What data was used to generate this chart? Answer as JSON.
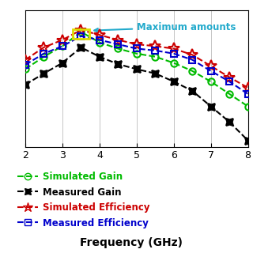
{
  "x_freq": [
    2.0,
    2.5,
    3.0,
    3.5,
    4.0,
    4.5,
    5.0,
    5.5,
    6.0,
    6.5,
    7.0,
    7.5,
    8.0
  ],
  "sim_gain": [
    1.5,
    3.5,
    5.2,
    7.5,
    5.8,
    4.8,
    4.0,
    3.5,
    2.5,
    1.2,
    -0.5,
    -2.5,
    -4.5
  ],
  "meas_gain": [
    -1.0,
    0.8,
    2.5,
    5.0,
    3.5,
    2.3,
    1.5,
    0.8,
    -0.5,
    -2.0,
    -4.5,
    -7.0,
    -10.0
  ],
  "sim_eff": [
    3.0,
    5.0,
    6.2,
    7.8,
    7.0,
    6.2,
    5.5,
    5.2,
    4.8,
    3.8,
    2.0,
    0.2,
    -1.5
  ],
  "meas_eff": [
    2.2,
    4.0,
    5.2,
    6.8,
    6.2,
    5.5,
    4.8,
    4.5,
    4.0,
    3.0,
    1.2,
    -0.5,
    -2.5
  ],
  "sim_gain_color": "#00bb00",
  "meas_gain_color": "#000000",
  "sim_eff_color": "#cc0000",
  "meas_eff_color": "#0000cc",
  "xlabel": "Frequency (GHz)",
  "annotation_text": "Maximum amounts",
  "annotation_color": "#22aacc",
  "xlim": [
    2,
    8
  ],
  "ylim": [
    -11,
    11
  ],
  "xticks": [
    2,
    3,
    4,
    5,
    6,
    7,
    8
  ],
  "legend_entries": [
    "Simulated Gain",
    "Measured Gain",
    "Simulated Efficiency",
    "Measured Efficiency"
  ],
  "legend_colors": [
    "#00bb00",
    "#000000",
    "#cc0000",
    "#0000cc"
  ],
  "background_color": "#ffffff",
  "grid_color": "#bbbbbb",
  "yellow_rect_color": "#dddd00"
}
